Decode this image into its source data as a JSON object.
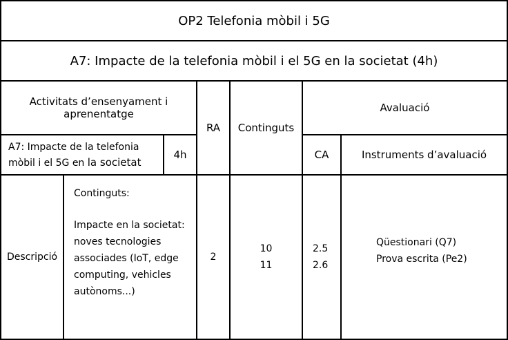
{
  "module_title": "OP2 Telefonia mòbil i 5G",
  "activity_title": "A7: Impacte de la telefonia mòbil i el 5G en la societat (4h)",
  "headers": {
    "activitats": "Activitats d’ensenyament i aprenentatge",
    "ra": "RA",
    "continguts": "Continguts",
    "avaluacio": "Avaluació",
    "ca": "CA",
    "instruments": "Instruments d’avaluació"
  },
  "activity_row": {
    "name_line1": "A7: Impacte de la telefonia",
    "name_line2_prefix": "mòbil i el 5G en ",
    "name_line2_suffix": "la societat",
    "hours": "4h"
  },
  "body": {
    "descripcio_label": "Descripció",
    "continguts_heading": "Continguts:",
    "continguts_text": "Impacte en la societat: noves tecnologies associades (IoT, edge computing, vehicles autònoms...)",
    "ra_value": "2",
    "continguts_values": [
      "10",
      "11"
    ],
    "ca_values": [
      "2.5",
      "2.6"
    ],
    "instruments": [
      "Qüestionari (Q7)",
      "Prova escrita (Pe2)"
    ]
  }
}
